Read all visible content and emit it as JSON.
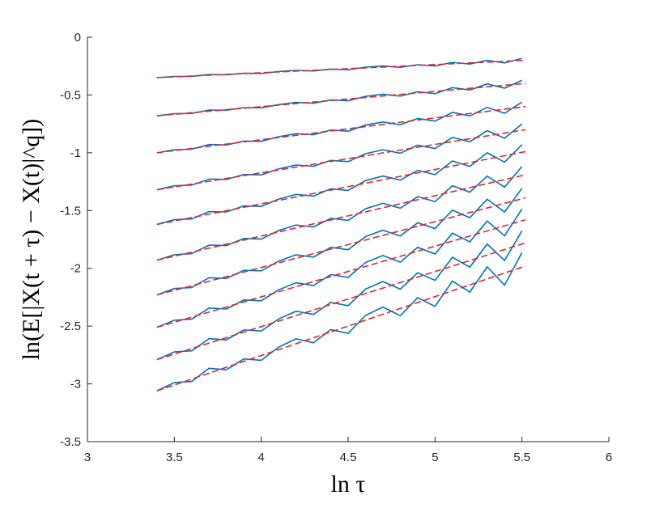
{
  "chart_data": {
    "type": "line",
    "xlabel": "ln τ",
    "ylabel": "ln(E[|X(t + τ) − X(t)|^q])",
    "xlim": [
      3,
      6
    ],
    "ylim": [
      -3.5,
      0
    ],
    "xticks": [
      3,
      3.5,
      4,
      4.5,
      5,
      5.5,
      6
    ],
    "yticks": [
      0,
      -0.5,
      -1,
      -1.5,
      -2,
      -2.5,
      -3,
      -3.5
    ],
    "x": [
      3.4,
      3.5,
      3.6,
      3.7,
      3.8,
      3.9,
      4.0,
      4.1,
      4.2,
      4.3,
      4.4,
      4.5,
      4.6,
      4.7,
      4.8,
      4.9,
      5.0,
      5.1,
      5.2,
      5.3,
      5.4,
      5.5
    ],
    "series": [
      {
        "color": "#0072bd",
        "style": "solid",
        "values": [
          -0.35,
          -0.34,
          -0.339,
          -0.323,
          -0.325,
          -0.312,
          -0.314,
          -0.297,
          -0.287,
          -0.292,
          -0.276,
          -0.281,
          -0.259,
          -0.249,
          -0.26,
          -0.238,
          -0.249,
          -0.218,
          -0.232,
          -0.2,
          -0.223,
          -0.183
        ]
      },
      {
        "color": "#0072bd",
        "style": "solid",
        "values": [
          -0.68,
          -0.662,
          -0.659,
          -0.63,
          -0.632,
          -0.609,
          -0.611,
          -0.583,
          -0.564,
          -0.571,
          -0.543,
          -0.55,
          -0.512,
          -0.493,
          -0.51,
          -0.472,
          -0.489,
          -0.436,
          -0.457,
          -0.404,
          -0.441,
          -0.373
        ]
      },
      {
        "color": "#0072bd",
        "style": "solid",
        "values": [
          -1,
          -0.974,
          -0.969,
          -0.929,
          -0.932,
          -0.899,
          -0.901,
          -0.861,
          -0.835,
          -0.844,
          -0.804,
          -0.813,
          -0.76,
          -0.734,
          -0.757,
          -0.703,
          -0.726,
          -0.651,
          -0.681,
          -0.607,
          -0.658,
          -0.562
        ]
      },
      {
        "color": "#0072bd",
        "style": "solid",
        "values": [
          -1.32,
          -1.286,
          -1.28,
          -1.228,
          -1.231,
          -1.188,
          -1.191,
          -1.139,
          -1.106,
          -1.117,
          -1.066,
          -1.077,
          -1.008,
          -0.974,
          -1.004,
          -0.934,
          -0.964,
          -0.867,
          -0.905,
          -0.809,
          -0.874,
          -0.751
        ]
      },
      {
        "color": "#0072bd",
        "style": "solid",
        "values": [
          -1.62,
          -1.579,
          -1.572,
          -1.509,
          -1.512,
          -1.46,
          -1.464,
          -1.401,
          -1.36,
          -1.375,
          -1.312,
          -1.326,
          -1.241,
          -1.201,
          -1.237,
          -1.152,
          -1.189,
          -1.071,
          -1.118,
          -1,
          -1.081,
          -0.93
        ]
      },
      {
        "color": "#0072bd",
        "style": "solid",
        "values": [
          -1.93,
          -1.882,
          -1.873,
          -1.799,
          -1.803,
          -1.742,
          -1.747,
          -1.673,
          -1.625,
          -1.642,
          -1.568,
          -1.585,
          -1.485,
          -1.437,
          -1.48,
          -1.38,
          -1.423,
          -1.285,
          -1.341,
          -1.202,
          -1.297,
          -1.119
        ]
      },
      {
        "color": "#0072bd",
        "style": "solid",
        "values": [
          -2.23,
          -2.175,
          -2.166,
          -2.081,
          -2.087,
          -2.017,
          -2.022,
          -1.938,
          -1.883,
          -1.903,
          -1.819,
          -1.839,
          -1.725,
          -1.67,
          -1.72,
          -1.606,
          -1.656,
          -1.496,
          -1.562,
          -1.402,
          -1.513,
          -1.308
        ]
      },
      {
        "color": "#0072bd",
        "style": "solid",
        "values": [
          -2.51,
          -2.449,
          -2.439,
          -2.344,
          -2.352,
          -2.274,
          -2.281,
          -2.186,
          -2.125,
          -2.149,
          -2.054,
          -2.078,
          -1.95,
          -1.889,
          -1.947,
          -1.818,
          -1.876,
          -1.696,
          -1.771,
          -1.591,
          -1.718,
          -1.487
        ]
      },
      {
        "color": "#0072bd",
        "style": "solid",
        "values": [
          -2.79,
          -2.723,
          -2.714,
          -2.609,
          -2.618,
          -2.533,
          -2.542,
          -2.438,
          -2.371,
          -2.399,
          -2.295,
          -2.323,
          -2.18,
          -2.114,
          -2.18,
          -2.038,
          -2.104,
          -1.904,
          -1.99,
          -1.79,
          -1.932,
          -1.676
        ]
      },
      {
        "color": "#0072bd",
        "style": "solid",
        "values": [
          -3.06,
          -2.988,
          -2.979,
          -2.865,
          -2.877,
          -2.784,
          -2.796,
          -2.682,
          -2.61,
          -2.644,
          -2.53,
          -2.563,
          -2.407,
          -2.335,
          -2.41,
          -2.254,
          -2.329,
          -2.11,
          -2.206,
          -1.987,
          -2.146,
          -1.864
        ]
      },
      {
        "color": "#e3262b",
        "style": "dashed",
        "x": [
          3.4,
          5.52
        ],
        "values": [
          -0.35,
          -0.2
        ]
      },
      {
        "color": "#e3262b",
        "style": "dashed",
        "x": [
          3.4,
          5.52
        ],
        "values": [
          -0.68,
          -0.4
        ]
      },
      {
        "color": "#e3262b",
        "style": "dashed",
        "x": [
          3.4,
          5.52
        ],
        "values": [
          -1.0,
          -0.6
        ]
      },
      {
        "color": "#e3262b",
        "style": "dashed",
        "x": [
          3.4,
          5.52
        ],
        "values": [
          -1.32,
          -0.8
        ]
      },
      {
        "color": "#e3262b",
        "style": "dashed",
        "x": [
          3.4,
          5.52
        ],
        "values": [
          -1.62,
          -0.99
        ]
      },
      {
        "color": "#e3262b",
        "style": "dashed",
        "x": [
          3.4,
          5.52
        ],
        "values": [
          -1.93,
          -1.19
        ]
      },
      {
        "color": "#e3262b",
        "style": "dashed",
        "x": [
          3.4,
          5.52
        ],
        "values": [
          -2.23,
          -1.39
        ]
      },
      {
        "color": "#e3262b",
        "style": "dashed",
        "x": [
          3.4,
          5.52
        ],
        "values": [
          -2.51,
          -1.58
        ]
      },
      {
        "color": "#e3262b",
        "style": "dashed",
        "x": [
          3.4,
          5.52
        ],
        "values": [
          -2.79,
          -1.78
        ]
      },
      {
        "color": "#e3262b",
        "style": "dashed",
        "x": [
          3.4,
          5.52
        ],
        "values": [
          -3.06,
          -1.98
        ]
      }
    ]
  }
}
